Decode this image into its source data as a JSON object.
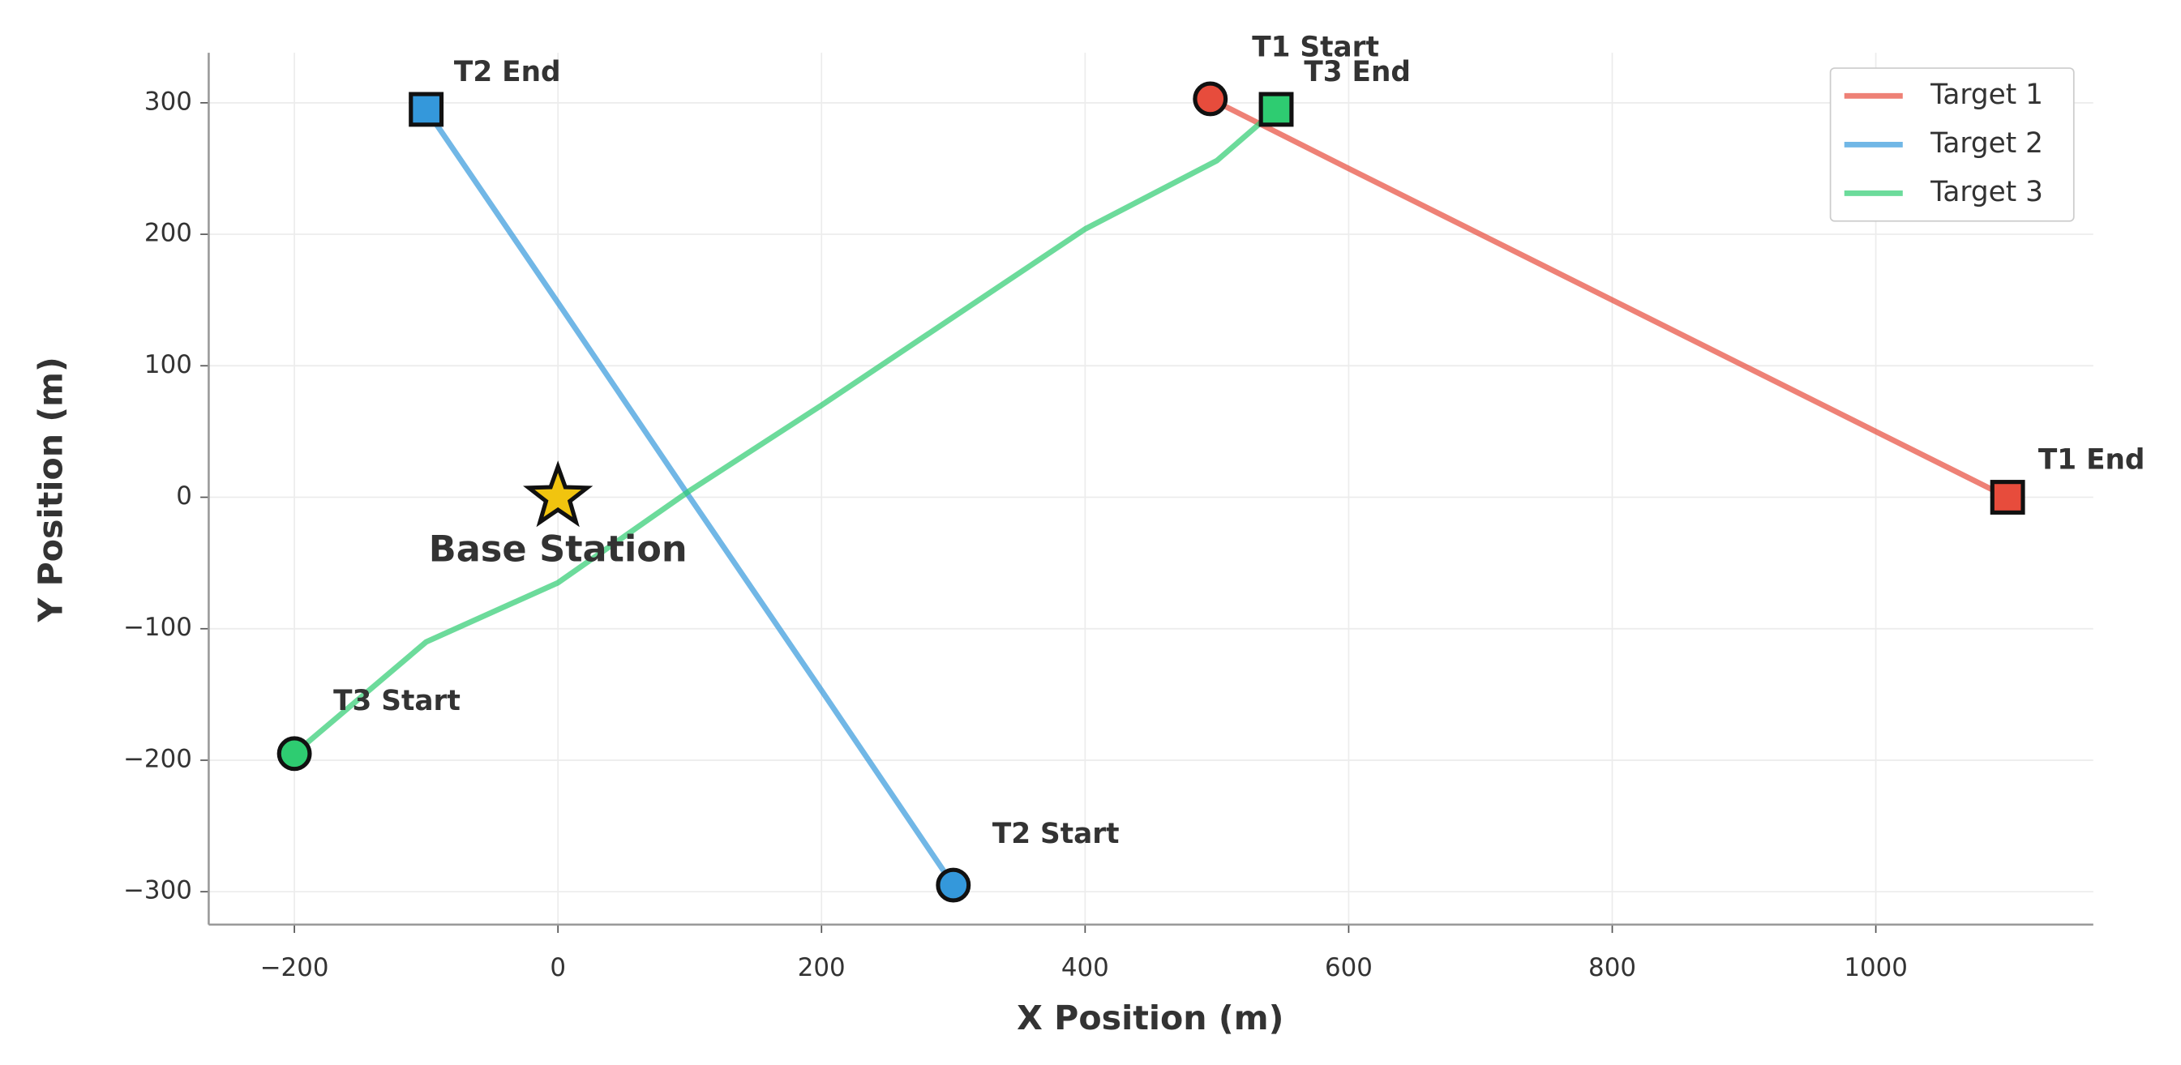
{
  "chart_data": {
    "type": "line",
    "xlabel": "X Position (m)",
    "ylabel": "Y Position (m)",
    "xlim": [
      -265,
      1165
    ],
    "ylim": [
      -325,
      338
    ],
    "xticks": [
      {
        "value": -200,
        "label": "−200"
      },
      0,
      200,
      400,
      600,
      800,
      1000
    ],
    "yticks": [
      {
        "value": -300,
        "label": "−300"
      },
      {
        "value": -200,
        "label": "−200"
      },
      {
        "value": -100,
        "label": "−100"
      },
      0,
      100,
      200,
      300
    ],
    "grid": true,
    "legend": "upper right",
    "series": [
      {
        "name": "Target 1",
        "color": "#e74c3c",
        "x": [
          495,
          600,
          700,
          800,
          900,
          1000,
          1100
        ],
        "values": [
          303,
          250,
          200,
          150,
          100,
          50,
          0
        ]
      },
      {
        "name": "Target 2",
        "color": "#3498db",
        "x": [
          300,
          200,
          100,
          0,
          -100
        ],
        "values": [
          -295,
          -147,
          0,
          148,
          295
        ]
      },
      {
        "name": "Target 3",
        "color": "#2ecc71",
        "x": [
          -200,
          -100,
          0,
          100,
          200,
          400,
          500,
          545
        ],
        "values": [
          -195,
          -110,
          -65,
          5,
          70,
          204,
          256,
          295
        ]
      }
    ],
    "markers": [
      {
        "label": "T1 Start",
        "shape": "circle",
        "color": "#e74c3c",
        "x": 495,
        "y": 303
      },
      {
        "label": "T1 End",
        "shape": "square",
        "color": "#e74c3c",
        "x": 1100,
        "y": 0
      },
      {
        "label": "T2 Start",
        "shape": "circle",
        "color": "#3498db",
        "x": 300,
        "y": -295
      },
      {
        "label": "T2 End",
        "shape": "square",
        "color": "#3498db",
        "x": -100,
        "y": 295
      },
      {
        "label": "T3 Start",
        "shape": "circle",
        "color": "#2ecc71",
        "x": -200,
        "y": -195
      },
      {
        "label": "T3 End",
        "shape": "square",
        "color": "#2ecc71",
        "x": 545,
        "y": 295
      }
    ],
    "station": {
      "label": "Base Station",
      "x": 0,
      "y": 0,
      "color": "#f1c40f"
    }
  }
}
